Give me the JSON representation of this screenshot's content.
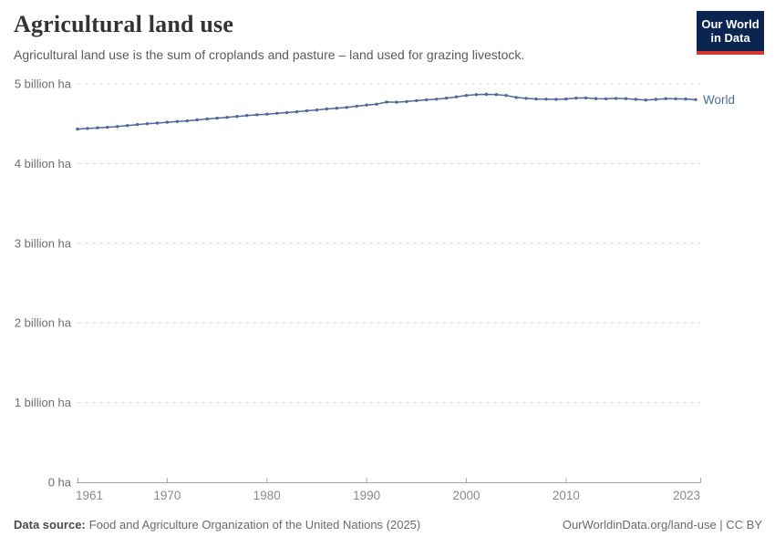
{
  "header": {
    "title": "Agricultural land use",
    "subtitle": "Agricultural land use is the sum of croplands and pasture – land used for grazing livestock.",
    "logo": {
      "line1": "Our World",
      "line2": "in Data"
    }
  },
  "chart_data": {
    "type": "line",
    "title": "Agricultural land use",
    "unit": "billion ha",
    "xlabel": "",
    "ylabel": "",
    "ylim": [
      0,
      5
    ],
    "grid": "horizontal-dashed",
    "legend_position": "end-of-line",
    "yticks": [
      {
        "value": 0,
        "label": "0 ha"
      },
      {
        "value": 1,
        "label": "1 billion ha"
      },
      {
        "value": 2,
        "label": "2 billion ha"
      },
      {
        "value": 3,
        "label": "3 billion ha"
      },
      {
        "value": 4,
        "label": "4 billion ha"
      },
      {
        "value": 5,
        "label": "5 billion ha"
      }
    ],
    "xticks": [
      1961,
      1970,
      1980,
      1990,
      2000,
      2010,
      2023
    ],
    "x": [
      1961,
      1962,
      1963,
      1964,
      1965,
      1966,
      1967,
      1968,
      1969,
      1970,
      1971,
      1972,
      1973,
      1974,
      1975,
      1976,
      1977,
      1978,
      1979,
      1980,
      1981,
      1982,
      1983,
      1984,
      1985,
      1986,
      1987,
      1988,
      1989,
      1990,
      1991,
      1992,
      1993,
      1994,
      1995,
      1996,
      1997,
      1998,
      1999,
      2000,
      2001,
      2002,
      2003,
      2004,
      2005,
      2006,
      2007,
      2008,
      2009,
      2010,
      2011,
      2012,
      2013,
      2014,
      2015,
      2016,
      2017,
      2018,
      2019,
      2020,
      2021,
      2022,
      2023
    ],
    "series": [
      {
        "name": "World",
        "color": "#4c6a9c",
        "values": [
          4.433,
          4.44,
          4.448,
          4.455,
          4.465,
          4.477,
          4.49,
          4.5,
          4.508,
          4.518,
          4.528,
          4.535,
          4.548,
          4.56,
          4.57,
          4.58,
          4.592,
          4.603,
          4.612,
          4.62,
          4.63,
          4.64,
          4.65,
          4.663,
          4.673,
          4.685,
          4.695,
          4.705,
          4.72,
          4.735,
          4.745,
          4.772,
          4.77,
          4.778,
          4.79,
          4.8,
          4.808,
          4.82,
          4.838,
          4.855,
          4.865,
          4.868,
          4.866,
          4.855,
          4.83,
          4.818,
          4.81,
          4.808,
          4.805,
          4.81,
          4.822,
          4.824,
          4.815,
          4.812,
          4.818,
          4.815,
          4.805,
          4.798,
          4.805,
          4.815,
          4.812,
          4.81,
          4.802
        ]
      }
    ]
  },
  "footer": {
    "source_label": "Data source:",
    "source_text": "Food and Agriculture Organization of the United Nations (2025)",
    "credit": "OurWorldinData.org/land-use | CC BY"
  },
  "colors": {
    "line": "#4c6a9c",
    "grid": "#dcdcdc",
    "axis": "#a8a8a8",
    "y_tick_label": "#6e6e6e",
    "x_tick_label": "#8a8a8a",
    "logo_navy": "#0a2550",
    "logo_red": "#d7382d"
  }
}
